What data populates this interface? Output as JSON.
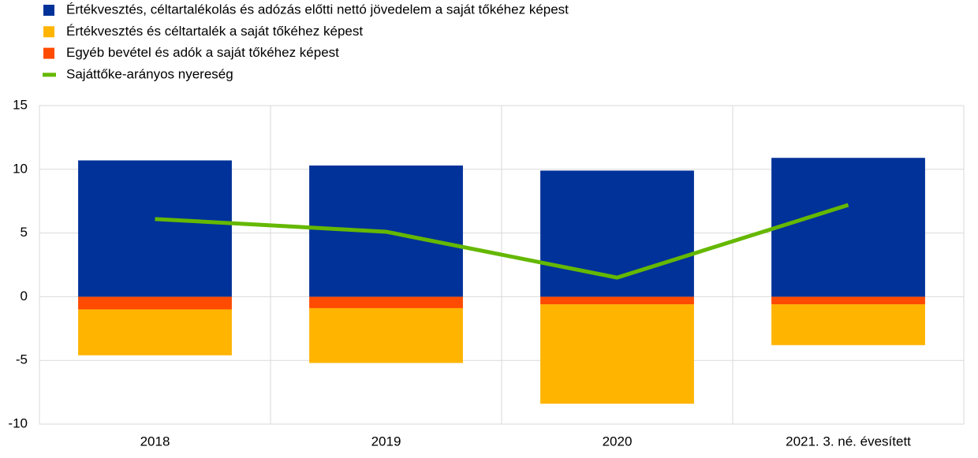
{
  "chart_data": {
    "type": "bar",
    "categories": [
      "2018",
      "2019",
      "2020",
      "2021. 3. né. évesített"
    ],
    "series": [
      {
        "name": "Értékvesztés, céltartalékolás és adózás előtti nettó jövedelem a saját tőkéhez képest",
        "color": "#003299",
        "type": "bar",
        "values": [
          10.7,
          10.3,
          9.9,
          10.9
        ]
      },
      {
        "name": "Értékvesztés és céltartalék a saját tőkéhez képest",
        "color": "#ffb400",
        "type": "bar",
        "values": [
          -3.6,
          -4.3,
          -7.8,
          -3.2
        ]
      },
      {
        "name": "Egyéb bevétel és adók a saját tőkéhez képest",
        "color": "#ff4b00",
        "type": "bar",
        "values": [
          -1.0,
          -0.9,
          -0.6,
          -0.6
        ]
      },
      {
        "name": "Sajáttőke-arányos nyereség",
        "color": "#65b800",
        "type": "line",
        "values": [
          6.1,
          5.1,
          1.5,
          7.2
        ]
      }
    ],
    "stacked": true,
    "ylim": [
      -10,
      15
    ],
    "yticks": [
      -10,
      -5,
      0,
      5,
      10,
      15
    ],
    "grid": true
  }
}
